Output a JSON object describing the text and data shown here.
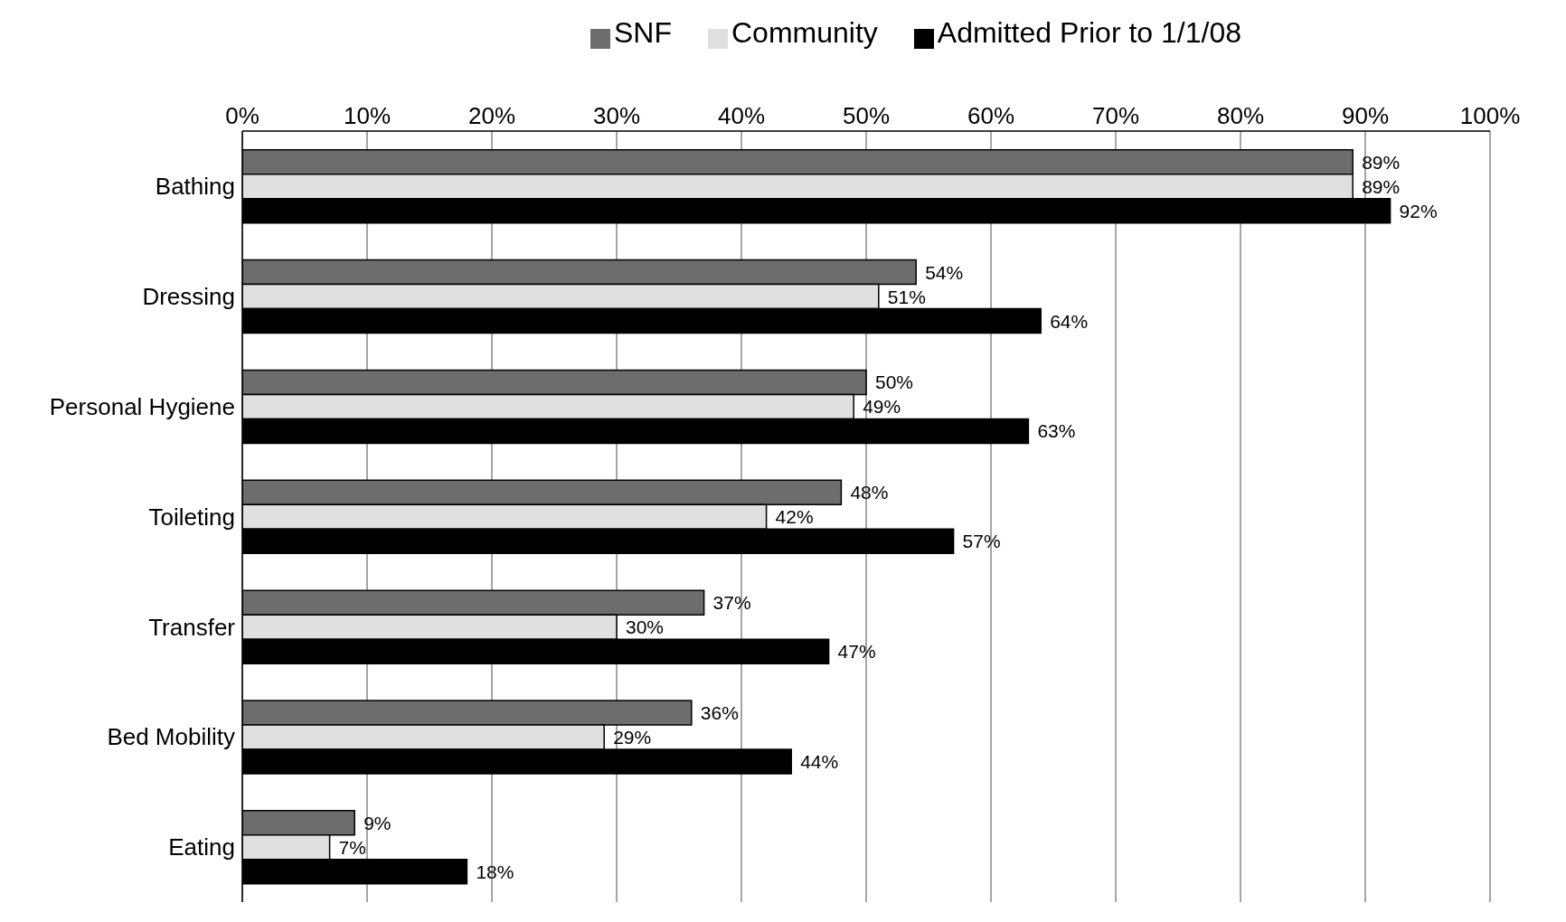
{
  "chart_data": {
    "type": "bar",
    "orientation": "horizontal",
    "categories": [
      "Bathing",
      "Dressing",
      "Personal Hygiene",
      "Toileting",
      "Transfer",
      "Bed Mobility",
      "Eating"
    ],
    "series": [
      {
        "name": "SNF",
        "color": "#6d6d6d",
        "values": [
          89,
          54,
          50,
          48,
          37,
          36,
          9
        ],
        "value_labels": [
          "89%",
          "54%",
          "50%",
          "48%",
          "37%",
          "36%",
          "9%"
        ]
      },
      {
        "name": "Community",
        "color": "#e0e0e0",
        "values": [
          89,
          51,
          49,
          42,
          30,
          29,
          7
        ],
        "value_labels": [
          "89%",
          "51%",
          "49%",
          "42%",
          "30%",
          "29%",
          "7%"
        ]
      },
      {
        "name": "Admitted Prior to 1/1/08",
        "color": "#000000",
        "values": [
          92,
          64,
          63,
          57,
          47,
          44,
          18
        ],
        "value_labels": [
          "92%",
          "64%",
          "63%",
          "57%",
          "47%",
          "44%",
          "18%"
        ]
      }
    ],
    "xlim": [
      0,
      100
    ],
    "xticks": [
      {
        "value": 0,
        "label": "0%"
      },
      {
        "value": 10,
        "label": "10%"
      },
      {
        "value": 20,
        "label": "20%"
      },
      {
        "value": 30,
        "label": "30%"
      },
      {
        "value": 40,
        "label": "40%"
      },
      {
        "value": 50,
        "label": "50%"
      },
      {
        "value": 60,
        "label": "60%"
      },
      {
        "value": 70,
        "label": "70%"
      },
      {
        "value": 80,
        "label": "80%"
      },
      {
        "value": 90,
        "label": "90%"
      },
      {
        "value": 100,
        "label": "100%"
      }
    ],
    "grid": "x",
    "legend": "top"
  }
}
